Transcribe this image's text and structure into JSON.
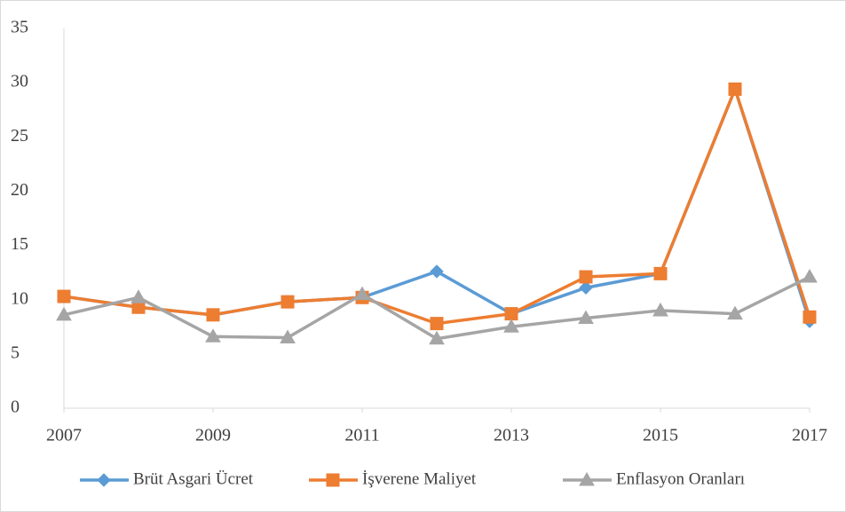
{
  "chart_data": {
    "type": "line",
    "x": [
      2007,
      2008,
      2009,
      2010,
      2011,
      2012,
      2013,
      2014,
      2015,
      2016,
      2017
    ],
    "xlim": [
      2007,
      2017
    ],
    "xticks": [
      2007,
      2009,
      2011,
      2013,
      2015,
      2017
    ],
    "ylim": [
      0,
      35
    ],
    "yticks": [
      0,
      5,
      10,
      15,
      20,
      25,
      30,
      35
    ],
    "grid": false,
    "legend": "bottom",
    "series": [
      {
        "name": "Brüt Asgari Ücret",
        "color": "#5b9bd5",
        "marker": "diamond",
        "values": [
          10.3,
          9.3,
          8.6,
          9.8,
          10.2,
          12.6,
          8.7,
          11.1,
          12.4,
          29.4,
          8.0
        ]
      },
      {
        "name": "İşverene Maliyet",
        "color": "#ed7d31",
        "marker": "square",
        "values": [
          10.3,
          9.3,
          8.6,
          9.8,
          10.2,
          7.8,
          8.7,
          12.1,
          12.4,
          29.4,
          8.4
        ]
      },
      {
        "name": "Enflasyon Oranları",
        "color": "#a5a5a5",
        "marker": "triangle",
        "values": [
          8.6,
          10.2,
          6.6,
          6.5,
          10.5,
          6.4,
          7.5,
          8.3,
          9.0,
          8.7,
          12.1
        ]
      }
    ]
  }
}
